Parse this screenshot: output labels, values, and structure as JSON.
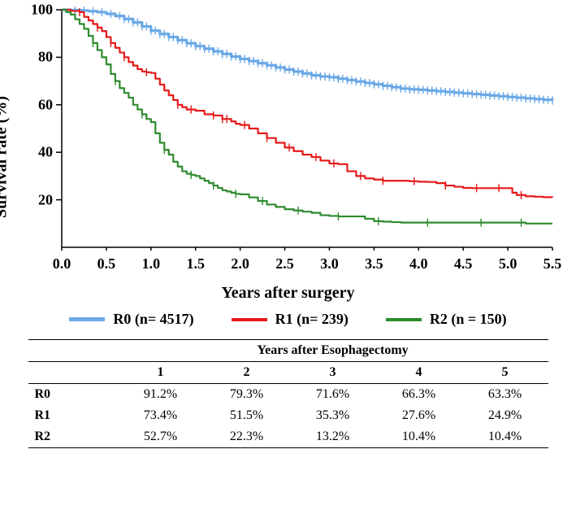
{
  "chart": {
    "type": "kaplan-meier-step",
    "ylabel": "Survival rate (%)",
    "xlabel": "Years after surgery",
    "xlim": [
      0.0,
      5.5
    ],
    "ylim": [
      0,
      100
    ],
    "xtick_step": 0.5,
    "ytick_step": 20,
    "xtick_decimal": 1,
    "background_color": "#ffffff",
    "axis_color": "#000000",
    "axis_width": 1.5,
    "tick_len": 7,
    "label_fontsize": 20,
    "tick_fontsize": 18,
    "line_width": 2.2,
    "censor_marker": "+",
    "censor_len": 5,
    "series": [
      {
        "id": "R0",
        "label": "R0 (n= 4517)",
        "color": "#6ba9e6",
        "line_width": 3.2,
        "points": [
          [
            0.0,
            100
          ],
          [
            0.1,
            99.9
          ],
          [
            0.2,
            99.7
          ],
          [
            0.3,
            99.4
          ],
          [
            0.4,
            99.0
          ],
          [
            0.5,
            98.3
          ],
          [
            0.6,
            97.4
          ],
          [
            0.7,
            96.1
          ],
          [
            0.8,
            94.7
          ],
          [
            0.9,
            93.0
          ],
          [
            1.0,
            91.2
          ],
          [
            1.1,
            89.8
          ],
          [
            1.2,
            88.5
          ],
          [
            1.3,
            87.2
          ],
          [
            1.4,
            85.9
          ],
          [
            1.5,
            84.7
          ],
          [
            1.6,
            83.6
          ],
          [
            1.7,
            82.5
          ],
          [
            1.8,
            81.4
          ],
          [
            1.9,
            80.3
          ],
          [
            2.0,
            79.3
          ],
          [
            2.1,
            78.4
          ],
          [
            2.2,
            77.5
          ],
          [
            2.3,
            76.6
          ],
          [
            2.4,
            75.7
          ],
          [
            2.5,
            74.8
          ],
          [
            2.6,
            74.0
          ],
          [
            2.7,
            73.2
          ],
          [
            2.8,
            72.4
          ],
          [
            2.9,
            71.9
          ],
          [
            3.0,
            71.6
          ],
          [
            3.1,
            71.0
          ],
          [
            3.2,
            70.4
          ],
          [
            3.3,
            69.8
          ],
          [
            3.4,
            69.2
          ],
          [
            3.5,
            68.6
          ],
          [
            3.6,
            68.0
          ],
          [
            3.7,
            67.4
          ],
          [
            3.8,
            66.8
          ],
          [
            3.9,
            66.5
          ],
          [
            4.0,
            66.3
          ],
          [
            4.1,
            66.0
          ],
          [
            4.2,
            65.7
          ],
          [
            4.3,
            65.4
          ],
          [
            4.4,
            65.1
          ],
          [
            4.5,
            64.8
          ],
          [
            4.6,
            64.5
          ],
          [
            4.7,
            64.2
          ],
          [
            4.8,
            63.9
          ],
          [
            4.9,
            63.6
          ],
          [
            5.0,
            63.3
          ],
          [
            5.1,
            63.0
          ],
          [
            5.2,
            62.7
          ],
          [
            5.3,
            62.4
          ],
          [
            5.4,
            62.1
          ],
          [
            5.5,
            61.8
          ]
        ],
        "censors": [
          0.15,
          0.25,
          0.35,
          0.45,
          0.55,
          0.65,
          0.7,
          0.75,
          0.8,
          0.85,
          0.9,
          0.95,
          1.0,
          1.05,
          1.1,
          1.15,
          1.2,
          1.25,
          1.3,
          1.35,
          1.4,
          1.45,
          1.5,
          1.55,
          1.6,
          1.65,
          1.7,
          1.75,
          1.8,
          1.85,
          1.9,
          1.95,
          2.0,
          2.05,
          2.1,
          2.15,
          2.2,
          2.25,
          2.3,
          2.35,
          2.4,
          2.45,
          2.5,
          2.55,
          2.6,
          2.65,
          2.7,
          2.75,
          2.8,
          2.85,
          2.9,
          2.95,
          3.0,
          3.05,
          3.1,
          3.15,
          3.2,
          3.25,
          3.3,
          3.35,
          3.4,
          3.45,
          3.5,
          3.55,
          3.6,
          3.65,
          3.7,
          3.75,
          3.8,
          3.85,
          3.9,
          3.95,
          4.0,
          4.05,
          4.1,
          4.15,
          4.2,
          4.25,
          4.3,
          4.35,
          4.4,
          4.45,
          4.5,
          4.55,
          4.6,
          4.65,
          4.7,
          4.75,
          4.8,
          4.85,
          4.9,
          4.95,
          5.0,
          5.05,
          5.1,
          5.15,
          5.2,
          5.25,
          5.3,
          5.35,
          5.4,
          5.45,
          5.5
        ]
      },
      {
        "id": "R1",
        "label": "R1 (n= 239)",
        "color": "#e61919",
        "line_width": 2.2,
        "points": [
          [
            0.0,
            100
          ],
          [
            0.1,
            99.5
          ],
          [
            0.2,
            99
          ],
          [
            0.25,
            97
          ],
          [
            0.3,
            95.5
          ],
          [
            0.35,
            94
          ],
          [
            0.4,
            92.5
          ],
          [
            0.45,
            91
          ],
          [
            0.5,
            88.5
          ],
          [
            0.55,
            86
          ],
          [
            0.6,
            84
          ],
          [
            0.65,
            82
          ],
          [
            0.7,
            80
          ],
          [
            0.75,
            78
          ],
          [
            0.8,
            76.5
          ],
          [
            0.85,
            75
          ],
          [
            0.9,
            74
          ],
          [
            0.95,
            73.7
          ],
          [
            1.0,
            73.4
          ],
          [
            1.05,
            71
          ],
          [
            1.1,
            68.5
          ],
          [
            1.15,
            66
          ],
          [
            1.2,
            64
          ],
          [
            1.25,
            62
          ],
          [
            1.3,
            60
          ],
          [
            1.35,
            59
          ],
          [
            1.4,
            58
          ],
          [
            1.5,
            57.5
          ],
          [
            1.6,
            56
          ],
          [
            1.7,
            55.5
          ],
          [
            1.8,
            54
          ],
          [
            1.85,
            54
          ],
          [
            1.9,
            53
          ],
          [
            1.95,
            52
          ],
          [
            2.0,
            51.5
          ],
          [
            2.1,
            50
          ],
          [
            2.2,
            48
          ],
          [
            2.3,
            46
          ],
          [
            2.4,
            44
          ],
          [
            2.5,
            42
          ],
          [
            2.6,
            40.5
          ],
          [
            2.7,
            39
          ],
          [
            2.8,
            38
          ],
          [
            2.9,
            36.5
          ],
          [
            3.0,
            35.3
          ],
          [
            3.1,
            35
          ],
          [
            3.2,
            32
          ],
          [
            3.3,
            30
          ],
          [
            3.4,
            29
          ],
          [
            3.5,
            28.5
          ],
          [
            3.6,
            28
          ],
          [
            3.7,
            28
          ],
          [
            3.8,
            28
          ],
          [
            3.9,
            27.8
          ],
          [
            4.0,
            27.6
          ],
          [
            4.1,
            27.5
          ],
          [
            4.2,
            27
          ],
          [
            4.3,
            26
          ],
          [
            4.4,
            25.5
          ],
          [
            4.5,
            25
          ],
          [
            4.6,
            24.9
          ],
          [
            4.8,
            24.9
          ],
          [
            5.0,
            24.9
          ],
          [
            5.05,
            23
          ],
          [
            5.1,
            22
          ],
          [
            5.2,
            21.5
          ],
          [
            5.3,
            21.3
          ],
          [
            5.4,
            21.1
          ],
          [
            5.5,
            21.0
          ]
        ],
        "censors": [
          0.2,
          0.4,
          0.55,
          0.7,
          0.95,
          1.3,
          1.45,
          1.7,
          1.8,
          1.85,
          2.05,
          2.3,
          2.55,
          2.85,
          3.05,
          3.35,
          3.6,
          3.95,
          4.3,
          4.65,
          4.9,
          5.15
        ]
      },
      {
        "id": "R2",
        "label": "R2 (n = 150)",
        "color": "#2e8b2e",
        "line_width": 2.2,
        "points": [
          [
            0.0,
            100
          ],
          [
            0.05,
            99
          ],
          [
            0.1,
            98
          ],
          [
            0.15,
            96
          ],
          [
            0.2,
            94
          ],
          [
            0.25,
            92
          ],
          [
            0.3,
            89
          ],
          [
            0.35,
            86
          ],
          [
            0.4,
            83
          ],
          [
            0.45,
            80
          ],
          [
            0.5,
            77
          ],
          [
            0.55,
            73
          ],
          [
            0.6,
            70
          ],
          [
            0.65,
            67
          ],
          [
            0.7,
            65
          ],
          [
            0.75,
            63
          ],
          [
            0.8,
            60
          ],
          [
            0.85,
            58
          ],
          [
            0.9,
            56
          ],
          [
            0.95,
            54
          ],
          [
            1.0,
            52.7
          ],
          [
            1.05,
            48
          ],
          [
            1.1,
            44
          ],
          [
            1.15,
            41
          ],
          [
            1.2,
            39
          ],
          [
            1.25,
            36
          ],
          [
            1.3,
            34
          ],
          [
            1.35,
            32
          ],
          [
            1.4,
            31
          ],
          [
            1.45,
            30.5
          ],
          [
            1.5,
            30
          ],
          [
            1.55,
            29
          ],
          [
            1.6,
            28
          ],
          [
            1.65,
            27
          ],
          [
            1.7,
            26
          ],
          [
            1.75,
            25
          ],
          [
            1.8,
            24
          ],
          [
            1.85,
            23.5
          ],
          [
            1.9,
            23
          ],
          [
            1.95,
            22.5
          ],
          [
            2.0,
            22.3
          ],
          [
            2.1,
            21
          ],
          [
            2.2,
            19.5
          ],
          [
            2.3,
            18
          ],
          [
            2.4,
            17
          ],
          [
            2.5,
            16
          ],
          [
            2.6,
            15.5
          ],
          [
            2.7,
            15
          ],
          [
            2.8,
            14.5
          ],
          [
            2.9,
            13.5
          ],
          [
            3.0,
            13.2
          ],
          [
            3.1,
            13
          ],
          [
            3.2,
            13
          ],
          [
            3.3,
            13
          ],
          [
            3.4,
            12
          ],
          [
            3.5,
            11
          ],
          [
            3.6,
            10.8
          ],
          [
            3.7,
            10.6
          ],
          [
            3.8,
            10.4
          ],
          [
            3.9,
            10.4
          ],
          [
            4.0,
            10.4
          ],
          [
            4.3,
            10.4
          ],
          [
            4.6,
            10.4
          ],
          [
            5.0,
            10.4
          ],
          [
            5.2,
            10
          ],
          [
            5.5,
            10
          ]
        ],
        "censors": [
          0.35,
          0.6,
          0.9,
          1.15,
          1.45,
          1.7,
          1.95,
          2.25,
          2.65,
          3.1,
          3.55,
          4.1,
          4.7,
          5.15
        ]
      }
    ]
  },
  "legend": {
    "items": [
      {
        "label": "R0 (n= 4517)",
        "color": "#6ba9e6",
        "thick": 5
      },
      {
        "label": "R1 (n= 239)",
        "color": "#e61919",
        "thick": 4
      },
      {
        "label": "R2 (n = 150)",
        "color": "#2e8b2e",
        "thick": 4
      }
    ]
  },
  "table": {
    "title": "Years after Esophagectomy",
    "columns": [
      "1",
      "2",
      "3",
      "4",
      "5"
    ],
    "rows": [
      {
        "head": "R0",
        "cells": [
          "91.2%",
          "79.3%",
          "71.6%",
          "66.3%",
          "63.3%"
        ]
      },
      {
        "head": "R1",
        "cells": [
          "73.4%",
          "51.5%",
          "35.3%",
          "27.6%",
          "24.9%"
        ]
      },
      {
        "head": "R2",
        "cells": [
          "52.7%",
          "22.3%",
          "13.2%",
          "10.4%",
          "10.4%"
        ]
      }
    ],
    "font_size": 16,
    "header_bold": true
  }
}
